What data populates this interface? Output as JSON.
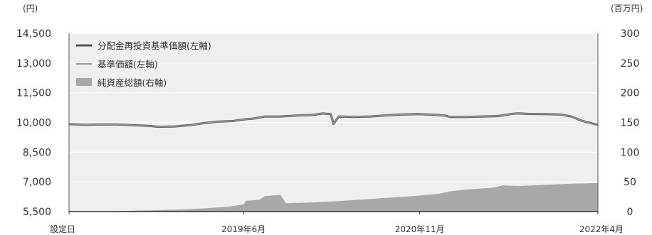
{
  "chart_data": {
    "type": "line",
    "left_axis": {
      "unit": "(円)",
      "ylim": [
        5500,
        14500
      ],
      "ticks": [
        5500,
        7000,
        8500,
        10000,
        11500,
        13000,
        14500
      ],
      "tick_labels": [
        "5,500",
        "7,000",
        "8,500",
        "10,000",
        "11,500",
        "13,000",
        "14,500"
      ]
    },
    "right_axis": {
      "unit": "(百万円)",
      "ylim": [
        0,
        300
      ],
      "ticks": [
        0,
        50,
        100,
        150,
        200,
        250,
        300
      ],
      "tick_labels": [
        "0",
        "50",
        "100",
        "150",
        "200",
        "250",
        "300"
      ]
    },
    "x_axis": {
      "range": [
        0,
        100
      ],
      "ticks": [
        {
          "x": 0,
          "label": "設定日"
        },
        {
          "x": 33,
          "label": "2019年6月"
        },
        {
          "x": 66.3,
          "label": "2020年11月"
        },
        {
          "x": 100,
          "label": "2022年4月"
        }
      ]
    },
    "grid": true,
    "legend_position": "top-left",
    "legend": [
      {
        "key": "reinvested",
        "label": "分配金再投資基準価額(左軸)",
        "style": "line",
        "color": "#555555"
      },
      {
        "key": "nav",
        "label": "基準価額(左軸)",
        "style": "line",
        "color": "#999999"
      },
      {
        "key": "assets",
        "label": "純資産総額(右軸)",
        "style": "area",
        "color": "#a8a8a8"
      }
    ],
    "series": [
      {
        "key": "reinvested",
        "axis": "left",
        "x": [
          0,
          3,
          6,
          9,
          12,
          15,
          17,
          20,
          23,
          25,
          28,
          31,
          33,
          35,
          37,
          40,
          43,
          46,
          48,
          49.5,
          50,
          51,
          54,
          57,
          60,
          63,
          66,
          69,
          71,
          72,
          75,
          78,
          81,
          84,
          85,
          87,
          90,
          93,
          95,
          97,
          100
        ],
        "y": [
          9920,
          9880,
          9900,
          9900,
          9860,
          9830,
          9780,
          9800,
          9870,
          9950,
          10040,
          10070,
          10150,
          10200,
          10300,
          10300,
          10350,
          10380,
          10450,
          10420,
          9920,
          10300,
          10280,
          10300,
          10360,
          10400,
          10420,
          10390,
          10350,
          10280,
          10280,
          10300,
          10320,
          10440,
          10460,
          10430,
          10420,
          10400,
          10300,
          10080,
          9880
        ]
      },
      {
        "key": "nav",
        "axis": "left",
        "x": [
          0,
          3,
          6,
          9,
          12,
          15,
          17,
          20,
          23,
          25,
          28,
          31,
          33,
          35,
          37,
          40,
          43,
          46,
          48,
          49.5,
          50,
          51,
          54,
          57,
          60,
          63,
          66,
          69,
          71,
          72,
          75,
          78,
          81,
          84,
          85,
          87,
          90,
          93,
          95,
          97,
          100
        ],
        "y": [
          9920,
          9880,
          9900,
          9900,
          9860,
          9830,
          9780,
          9800,
          9870,
          9950,
          10040,
          10070,
          10150,
          10200,
          10300,
          10300,
          10350,
          10380,
          10450,
          10420,
          9920,
          10300,
          10280,
          10300,
          10360,
          10400,
          10420,
          10390,
          10350,
          10280,
          10280,
          10300,
          10320,
          10440,
          10460,
          10430,
          10420,
          10400,
          10300,
          10080,
          9880
        ]
      },
      {
        "key": "assets",
        "axis": "right",
        "x": [
          0,
          10,
          15,
          20,
          25,
          30,
          33,
          33.5,
          36,
          37,
          40,
          41,
          45,
          50,
          55,
          60,
          65,
          70,
          72,
          75,
          80,
          82,
          85,
          90,
          95,
          100
        ],
        "y": [
          0,
          1,
          2,
          3,
          5,
          8,
          12,
          18,
          20,
          26,
          28,
          14,
          15,
          17,
          20,
          23,
          26,
          30,
          34,
          37,
          40,
          44,
          43,
          45,
          47,
          48
        ]
      }
    ]
  }
}
